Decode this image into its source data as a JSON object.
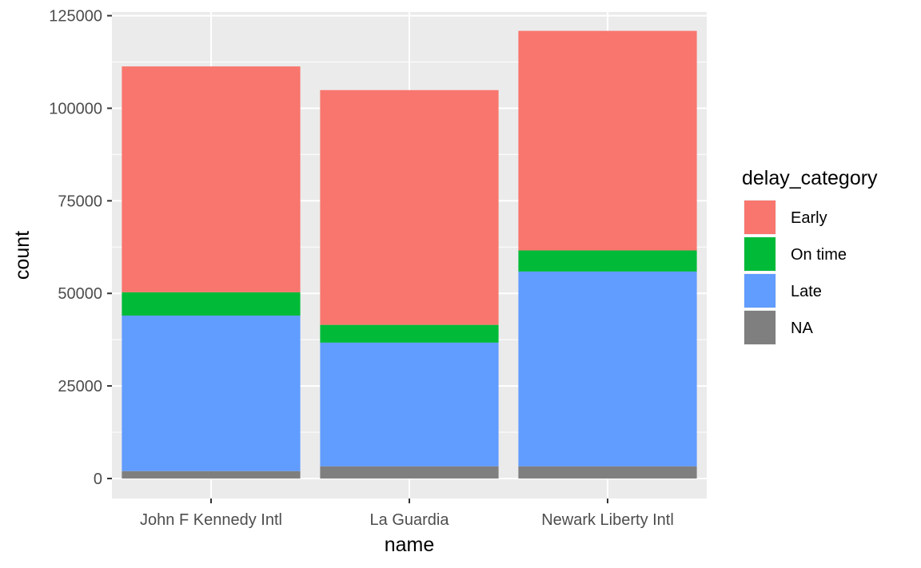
{
  "chart_data": {
    "type": "bar",
    "stacked": true,
    "categories": [
      "John F Kennedy Intl",
      "La Guardia",
      "Newark Liberty Intl"
    ],
    "series": [
      {
        "name": "NA",
        "color": "#7f7f7f",
        "values": [
          2000,
          3300,
          3300
        ]
      },
      {
        "name": "Late",
        "color": "#619cff",
        "values": [
          42000,
          33400,
          52600
        ]
      },
      {
        "name": "On time",
        "color": "#00ba38",
        "values": [
          6300,
          4800,
          5700
        ]
      },
      {
        "name": "Early",
        "color": "#f8766d",
        "values": [
          61000,
          63400,
          59300
        ]
      }
    ],
    "xlabel": "name",
    "ylabel": "count",
    "ylim": [
      -5400,
      126000
    ],
    "yticks": [
      0,
      25000,
      50000,
      75000,
      100000,
      125000
    ],
    "ytick_labels": [
      "0",
      "25000",
      "50000",
      "75000",
      "100000",
      "125000"
    ],
    "legend": {
      "title": "delay_category",
      "placement": "right",
      "entries": [
        {
          "label": "Early",
          "color": "#f8766d"
        },
        {
          "label": "On time",
          "color": "#00ba38"
        },
        {
          "label": "Late",
          "color": "#619cff"
        },
        {
          "label": "NA",
          "color": "#7f7f7f"
        }
      ]
    },
    "grid": true,
    "panel_background": "#ebebeb"
  }
}
